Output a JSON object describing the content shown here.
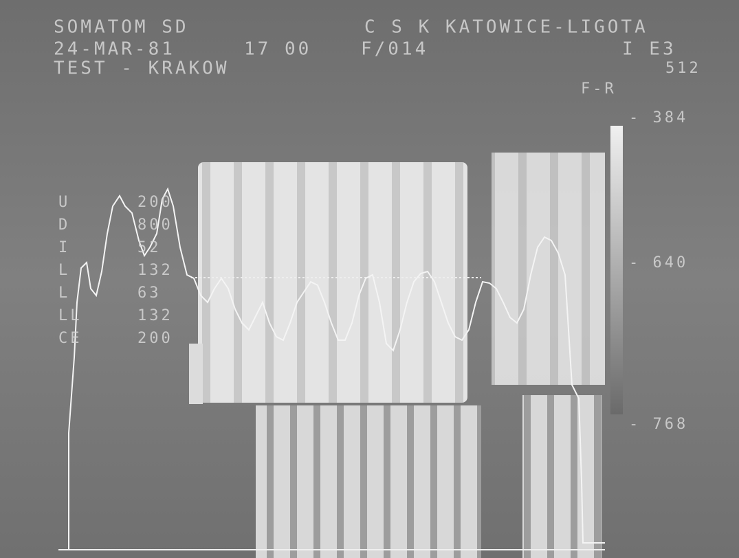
{
  "header": {
    "system": "SOMATOM SD",
    "site": "C S K KATOWICE-LIGOTA",
    "date": "24-MAR-81",
    "time": "17 00",
    "frame": "F/014",
    "index": "I E3",
    "study": "TEST - KRAKOW",
    "top_value": "512",
    "mode": "F-R"
  },
  "scale": [
    "- 384",
    "- 640",
    "- 768"
  ],
  "table": {
    "rows": [
      [
        "U",
        "200"
      ],
      [
        "D",
        "800"
      ],
      [
        "I",
        "52"
      ],
      [
        "L",
        "132"
      ],
      [
        "L",
        "63"
      ],
      [
        "LL",
        "132"
      ],
      [
        "CE",
        "200"
      ]
    ]
  }
}
